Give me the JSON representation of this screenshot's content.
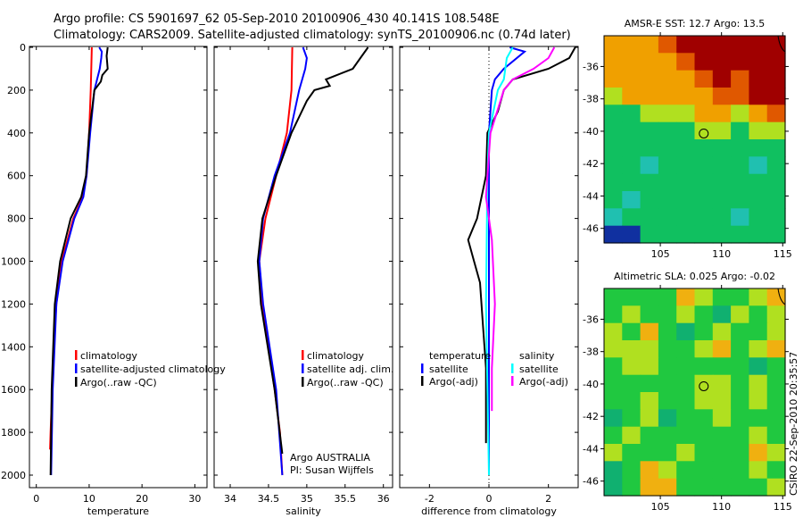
{
  "header": {
    "line1": "Argo profile: CS 5901697_62 05-Sep-2010 20100906_430 40.141S 108.548E",
    "line2": "Climatology: CARS2009. Satellite-adjusted climatology: synTS_20100906.nc (0.74d later)"
  },
  "credit": "CSIRO 22-Sep-2010 20:35:57",
  "colors": {
    "clim": "#ff0000",
    "sat": "#0000ff",
    "argo": "#000000",
    "sal_sat": "#00ffff",
    "sal_argo": "#ff00ff"
  },
  "chart_data": [
    {
      "type": "line",
      "xlabel": "temperature",
      "ylabel": "",
      "xlim": [
        -1.3,
        32.3
      ],
      "ylim": [
        2000,
        0
      ],
      "xticks": [
        0,
        10,
        20,
        30
      ],
      "yticks": [
        0,
        200,
        400,
        600,
        800,
        1000,
        1200,
        1400,
        1600,
        1800,
        2000
      ],
      "legend": [
        "climatology",
        "satellite-adjusted climatology",
        "Argo(..raw -QC)"
      ],
      "legend_placement": "lower-right",
      "series": [
        {
          "name": "climatology",
          "color": "#ff0000",
          "depth": [
            0,
            200,
            400,
            600,
            700,
            800,
            1000,
            1200,
            1400,
            1600,
            1800,
            1880
          ],
          "values": [
            10.5,
            10.3,
            10.0,
            9.5,
            8.8,
            7.0,
            4.8,
            3.8,
            3.3,
            3.0,
            2.7,
            2.6
          ]
        },
        {
          "name": "satellite-adjusted climatology",
          "color": "#0000ff",
          "depth": [
            0,
            20,
            50,
            100,
            200,
            400,
            600,
            700,
            800,
            1000,
            1200,
            1600,
            2000
          ],
          "values": [
            11.9,
            12.4,
            12.3,
            12.0,
            11.0,
            10.2,
            9.5,
            8.9,
            7.2,
            5.0,
            3.8,
            3.1,
            2.8
          ]
        },
        {
          "name": "Argo(..raw -QC)",
          "color": "#000000",
          "depth": [
            0,
            40,
            100,
            130,
            160,
            200,
            400,
            600,
            700,
            800,
            1000,
            1200,
            1600,
            2000
          ],
          "values": [
            13.5,
            13.3,
            13.5,
            12.5,
            12.2,
            11.0,
            10.0,
            9.4,
            8.5,
            6.5,
            4.5,
            3.5,
            2.9,
            2.7
          ]
        }
      ]
    },
    {
      "type": "line",
      "xlabel": "salinity",
      "xlim": [
        33.79,
        36.12
      ],
      "ylim": [
        2000,
        0
      ],
      "xticks": [
        34,
        34.5,
        35,
        35.5,
        36
      ],
      "yticks": [
        0,
        200,
        400,
        600,
        800,
        1000,
        1200,
        1400,
        1600,
        1800,
        2000
      ],
      "legend": [
        "climatology",
        "satellite adj. clim.",
        "Argo(..raw -QC)"
      ],
      "legend_placement": "lower-right",
      "annotation": [
        "Argo AUSTRALIA",
        "PI: Susan Wijffels"
      ],
      "series": [
        {
          "name": "climatology",
          "color": "#ff0000",
          "depth": [
            0,
            200,
            400,
            600,
            800,
            1000,
            1200,
            1400,
            1600,
            1800,
            2000
          ],
          "values": [
            34.81,
            34.8,
            34.74,
            34.6,
            34.46,
            34.38,
            34.42,
            34.5,
            34.58,
            34.65,
            34.68
          ]
        },
        {
          "name": "satellite adj. clim.",
          "color": "#0000ff",
          "depth": [
            0,
            50,
            100,
            200,
            400,
            600,
            800,
            1000,
            1200,
            1600,
            2000
          ],
          "values": [
            34.95,
            35.0,
            34.98,
            34.9,
            34.78,
            34.58,
            34.43,
            34.38,
            34.43,
            34.6,
            34.68
          ]
        },
        {
          "name": "Argo(..raw -QC)",
          "color": "#000000",
          "depth": [
            0,
            50,
            100,
            150,
            180,
            200,
            250,
            400,
            600,
            800,
            1000,
            1200,
            1600,
            1900
          ],
          "values": [
            35.8,
            35.7,
            35.6,
            35.25,
            35.3,
            35.1,
            35.0,
            34.8,
            34.6,
            34.42,
            34.36,
            34.4,
            34.58,
            34.68
          ]
        }
      ]
    },
    {
      "type": "line",
      "xlabel": "difference from climatology",
      "xlim": [
        -3,
        3
      ],
      "ylim": [
        2000,
        0
      ],
      "xticks": [
        -2,
        0,
        2
      ],
      "yticks": [
        0,
        200,
        400,
        600,
        800,
        1000,
        1200,
        1400,
        1600,
        1800,
        2000
      ],
      "legend_titles": [
        "temperature",
        "salinity"
      ],
      "legend": [
        "satellite",
        "Argo(-adj)",
        "satellite",
        "Argo(-adj)"
      ],
      "series": [
        {
          "name": "temperature satellite",
          "color": "#0000ff",
          "depth": [
            0,
            20,
            100,
            150,
            200,
            400,
            800,
            1200,
            2000
          ],
          "values": [
            0.7,
            1.2,
            0.5,
            0.2,
            0.1,
            0.0,
            0.0,
            0.0,
            0.0
          ]
        },
        {
          "name": "temperature Argo(-adj)",
          "color": "#000000",
          "depth": [
            0,
            50,
            100,
            150,
            200,
            300,
            400,
            600,
            800,
            900,
            1000,
            1100,
            1300,
            1500,
            1850
          ],
          "values": [
            2.9,
            2.7,
            2.0,
            0.8,
            0.5,
            0.3,
            -0.05,
            -0.1,
            -0.4,
            -0.7,
            -0.5,
            -0.3,
            -0.2,
            -0.1,
            -0.1
          ]
        },
        {
          "name": "salinity satellite",
          "color": "#00ffff",
          "depth": [
            0,
            50,
            150,
            200,
            400,
            600,
            1200,
            2000
          ],
          "values": [
            0.8,
            0.6,
            0.5,
            0.3,
            0.0,
            -0.05,
            -0.1,
            0.0
          ]
        },
        {
          "name": "salinity Argo(-adj)",
          "color": "#ff00ff",
          "depth": [
            0,
            50,
            100,
            150,
            200,
            400,
            700,
            900,
            1200,
            1500,
            1700
          ],
          "values": [
            2.2,
            2.0,
            1.5,
            0.8,
            0.5,
            0.05,
            -0.1,
            0.1,
            0.2,
            0.1,
            0.1
          ]
        }
      ]
    },
    {
      "type": "heatmap",
      "title": "AMSR-E SST: 12.7 Argo: 13.5",
      "xlim": [
        100.4,
        115.2
      ],
      "ylim": [
        -46.9,
        -34.1
      ],
      "xticks": [
        105,
        110,
        115
      ],
      "yticks": [
        -36,
        -38,
        -40,
        -42,
        -44,
        -46
      ],
      "marker": [
        108.548,
        -40.141
      ],
      "grid": [
        [
          4,
          4,
          4,
          5,
          6,
          6,
          6,
          6,
          6,
          6
        ],
        [
          4,
          4,
          4,
          4,
          5,
          6,
          6,
          6,
          6,
          6
        ],
        [
          4,
          4,
          4,
          4,
          4,
          5,
          6,
          5,
          6,
          6
        ],
        [
          3,
          4,
          4,
          4,
          4,
          4,
          5,
          5,
          6,
          6
        ],
        [
          2,
          2,
          3,
          3,
          3,
          4,
          4,
          3,
          4,
          5
        ],
        [
          2,
          2,
          2,
          2,
          2,
          3,
          3,
          2,
          3,
          3
        ],
        [
          2,
          2,
          2,
          2,
          2,
          2,
          2,
          2,
          2,
          2
        ],
        [
          2,
          2,
          1,
          2,
          2,
          2,
          2,
          2,
          1,
          2
        ],
        [
          2,
          2,
          2,
          2,
          2,
          2,
          2,
          2,
          2,
          2
        ],
        [
          2,
          1,
          2,
          2,
          2,
          2,
          2,
          2,
          2,
          2
        ],
        [
          1,
          2,
          2,
          2,
          2,
          2,
          2,
          1,
          2,
          2
        ],
        [
          0,
          0,
          2,
          2,
          2,
          2,
          2,
          2,
          2,
          2
        ]
      ]
    },
    {
      "type": "heatmap",
      "title": "Altimetric SLA: 0.025 Argo: -0.02",
      "xlim": [
        100.4,
        115.2
      ],
      "ylim": [
        -46.9,
        -34.1
      ],
      "xticks": [
        105,
        110,
        115
      ],
      "yticks": [
        -36,
        -38,
        -40,
        -42,
        -44,
        -46
      ],
      "marker": [
        108.548,
        -40.141
      ],
      "grid": [
        [
          2,
          2,
          2,
          2,
          4,
          3,
          2,
          2,
          3,
          4
        ],
        [
          2,
          3,
          2,
          2,
          3,
          2,
          1,
          3,
          2,
          3
        ],
        [
          3,
          2,
          4,
          2,
          1,
          2,
          3,
          2,
          2,
          3
        ],
        [
          3,
          3,
          3,
          2,
          2,
          3,
          4,
          2,
          3,
          4
        ],
        [
          2,
          3,
          3,
          2,
          2,
          2,
          2,
          2,
          1,
          2
        ],
        [
          2,
          2,
          2,
          2,
          2,
          3,
          3,
          2,
          3,
          2
        ],
        [
          2,
          2,
          3,
          2,
          2,
          3,
          3,
          2,
          3,
          2
        ],
        [
          1,
          2,
          3,
          1,
          2,
          2,
          3,
          2,
          2,
          2
        ],
        [
          2,
          3,
          2,
          2,
          2,
          2,
          2,
          2,
          3,
          2
        ],
        [
          3,
          2,
          2,
          2,
          3,
          2,
          2,
          2,
          4,
          3
        ],
        [
          1,
          2,
          4,
          3,
          2,
          2,
          2,
          2,
          3,
          2
        ],
        [
          1,
          2,
          4,
          4,
          2,
          2,
          2,
          2,
          2,
          3
        ]
      ]
    }
  ]
}
